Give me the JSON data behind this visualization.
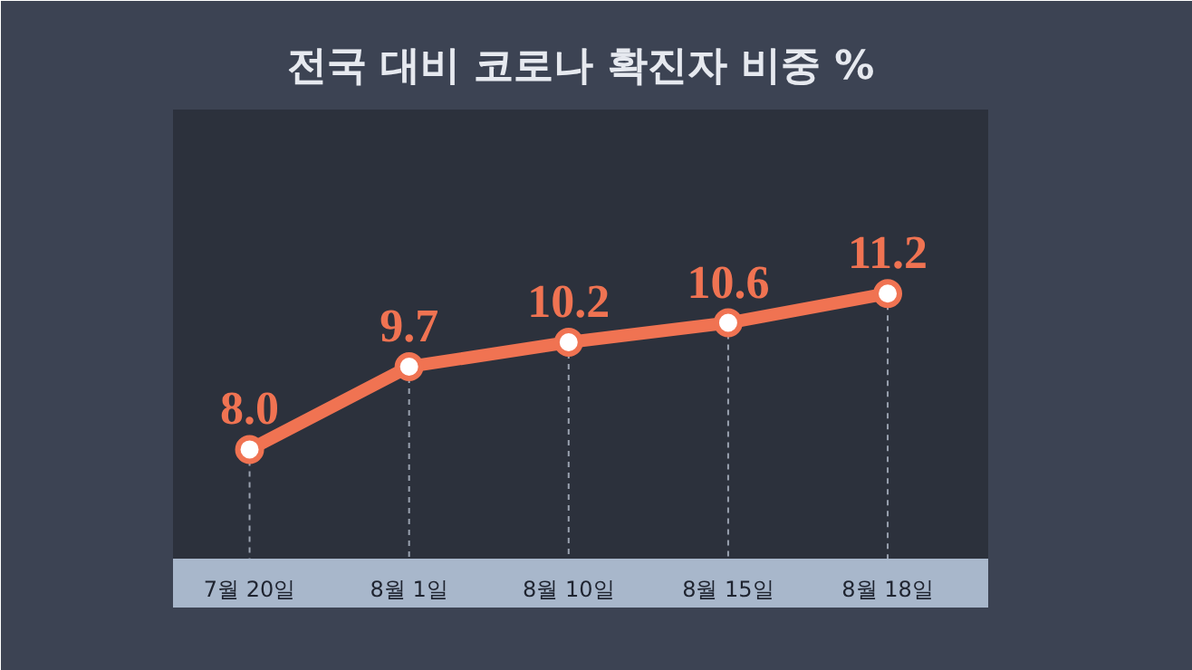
{
  "chart_data": {
    "type": "line",
    "title": "전국 대비 코로나 확진자 비중 %",
    "categories": [
      "7월 20일",
      "8월 1일",
      "8월 10일",
      "8월 15일",
      "8월 18일"
    ],
    "values": [
      8.0,
      9.7,
      10.2,
      10.6,
      11.2
    ],
    "value_labels": [
      "8.0",
      "9.7",
      "10.2",
      "10.6",
      "11.2"
    ],
    "color": "#f07352",
    "marker": "circle",
    "grid": "x"
  }
}
